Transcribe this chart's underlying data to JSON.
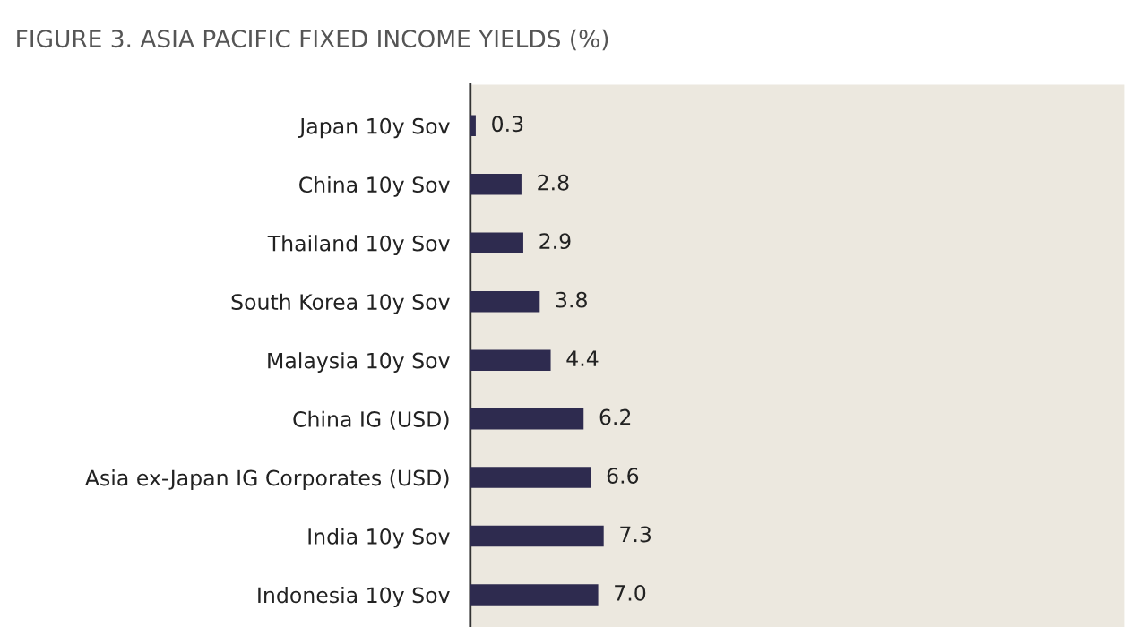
{
  "chart_data": {
    "type": "bar",
    "orientation": "horizontal",
    "title": "FIGURE 3. ASIA PACIFIC FIXED INCOME YIELDS (%)",
    "categories": [
      "Japan 10y Sov",
      "China 10y Sov",
      "Thailand 10y Sov",
      "South Korea 10y Sov",
      "Malaysia 10y Sov",
      "China IG (USD)",
      "Asia ex-Japan IG Corporates (USD)",
      "India 10y Sov",
      "Indonesia 10y Sov"
    ],
    "values": [
      0.3,
      2.8,
      2.9,
      3.8,
      4.4,
      6.2,
      6.6,
      7.3,
      7.0
    ],
    "value_labels": [
      "0.3",
      "2.8",
      "2.9",
      "3.8",
      "4.4",
      "6.2",
      "6.6",
      "7.3",
      "7.0"
    ],
    "color": "#2e2b4f",
    "grid": false,
    "legend": false
  }
}
